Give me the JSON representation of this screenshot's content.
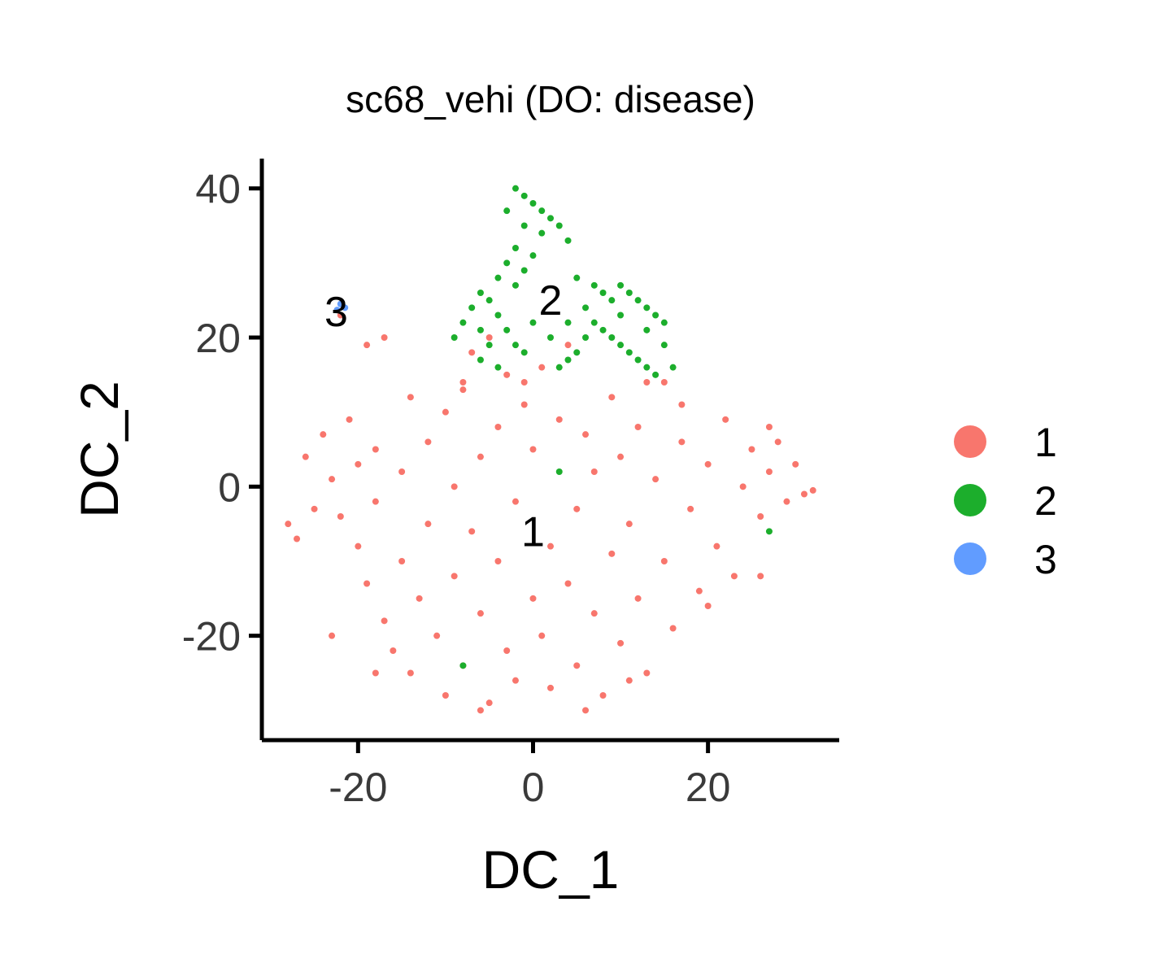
{
  "chart_data": {
    "type": "scatter",
    "title": "sc68_vehi (DO: disease)",
    "xlabel": "DC_1",
    "ylabel": "DC_2",
    "xlim": [
      -31,
      35
    ],
    "ylim": [
      -34,
      44
    ],
    "x_ticks": [
      -20,
      0,
      20
    ],
    "y_ticks": [
      -20,
      0,
      20,
      40
    ],
    "x_tick_labels": [
      "-20",
      "0",
      "20"
    ],
    "y_tick_labels": [
      "-20",
      "0",
      "20",
      "40"
    ],
    "grid": false,
    "legend_position": "right",
    "series": [
      {
        "name": "1",
        "color": "#F8766D",
        "label_at": [
          0,
          -6
        ],
        "points": [
          [
            -28,
            -5
          ],
          [
            -26,
            4
          ],
          [
            -25,
            -3
          ],
          [
            -24,
            7
          ],
          [
            -23,
            1
          ],
          [
            -22,
            -4
          ],
          [
            -21,
            9
          ],
          [
            -20,
            3
          ],
          [
            -20,
            -8
          ],
          [
            -19,
            -13
          ],
          [
            -18,
            5
          ],
          [
            -18,
            -2
          ],
          [
            -17,
            -18
          ],
          [
            -16,
            -22
          ],
          [
            -15,
            2
          ],
          [
            -15,
            -10
          ],
          [
            -14,
            -25
          ],
          [
            -13,
            -15
          ],
          [
            -12,
            -5
          ],
          [
            -12,
            6
          ],
          [
            -11,
            -20
          ],
          [
            -10,
            -28
          ],
          [
            -10,
            10
          ],
          [
            -9,
            -12
          ],
          [
            -9,
            0
          ],
          [
            -8,
            -24
          ],
          [
            -8,
            14
          ],
          [
            -7,
            -6
          ],
          [
            -7,
            18
          ],
          [
            -6,
            -17
          ],
          [
            -6,
            4
          ],
          [
            -5,
            -29
          ],
          [
            -5,
            20
          ],
          [
            -4,
            -10
          ],
          [
            -4,
            8
          ],
          [
            -3,
            -22
          ],
          [
            -3,
            15
          ],
          [
            -2,
            -2
          ],
          [
            -2,
            -26
          ],
          [
            -1,
            11
          ],
          [
            0,
            -15
          ],
          [
            0,
            5
          ],
          [
            1,
            -20
          ],
          [
            1,
            16
          ],
          [
            2,
            -8
          ],
          [
            2,
            -27
          ],
          [
            3,
            9
          ],
          [
            4,
            -13
          ],
          [
            4,
            19
          ],
          [
            5,
            -3
          ],
          [
            5,
            -24
          ],
          [
            6,
            7
          ],
          [
            7,
            -17
          ],
          [
            7,
            2
          ],
          [
            8,
            -28
          ],
          [
            9,
            -9
          ],
          [
            9,
            12
          ],
          [
            10,
            -21
          ],
          [
            10,
            4
          ],
          [
            11,
            -5
          ],
          [
            12,
            -15
          ],
          [
            12,
            8
          ],
          [
            13,
            -25
          ],
          [
            14,
            1
          ],
          [
            15,
            -10
          ],
          [
            15,
            14
          ],
          [
            16,
            -19
          ],
          [
            17,
            6
          ],
          [
            18,
            -3
          ],
          [
            19,
            -14
          ],
          [
            20,
            3
          ],
          [
            21,
            -8
          ],
          [
            22,
            9
          ],
          [
            23,
            -12
          ],
          [
            24,
            0
          ],
          [
            25,
            5
          ],
          [
            26,
            -4
          ],
          [
            27,
            2
          ],
          [
            28,
            6
          ],
          [
            29,
            -2
          ],
          [
            30,
            3
          ],
          [
            31,
            -1
          ],
          [
            32,
            -0.5
          ],
          [
            27,
            8
          ],
          [
            -22,
            23
          ],
          [
            -19,
            19
          ],
          [
            -17,
            20
          ],
          [
            -14,
            12
          ],
          [
            -8,
            13
          ],
          [
            -1,
            14
          ],
          [
            13,
            14
          ],
          [
            17,
            11
          ],
          [
            -23,
            -20
          ],
          [
            -18,
            -25
          ],
          [
            -6,
            -30
          ],
          [
            6,
            -30
          ],
          [
            11,
            -26
          ],
          [
            20,
            -16
          ],
          [
            26,
            -12
          ],
          [
            -27,
            -7
          ]
        ]
      },
      {
        "name": "2",
        "color": "#1CAE2C",
        "label_at": [
          2,
          25
        ],
        "points": [
          [
            -2,
            40
          ],
          [
            -1,
            39
          ],
          [
            0,
            38
          ],
          [
            1,
            37
          ],
          [
            -3,
            37
          ],
          [
            2,
            36
          ],
          [
            -1,
            35
          ],
          [
            1,
            34
          ],
          [
            3,
            35
          ],
          [
            4,
            33
          ],
          [
            -2,
            32
          ],
          [
            0,
            31
          ],
          [
            -3,
            30
          ],
          [
            -1,
            29
          ],
          [
            -4,
            28
          ],
          [
            -2,
            27
          ],
          [
            -6,
            26
          ],
          [
            -5,
            25
          ],
          [
            -7,
            24
          ],
          [
            -4,
            23
          ],
          [
            -8,
            22
          ],
          [
            -6,
            21
          ],
          [
            -3,
            21
          ],
          [
            -9,
            20
          ],
          [
            -5,
            19
          ],
          [
            -2,
            19
          ],
          [
            0,
            22
          ],
          [
            -1,
            18
          ],
          [
            -4,
            16
          ],
          [
            -6,
            17
          ],
          [
            5,
            28
          ],
          [
            7,
            27
          ],
          [
            8,
            26
          ],
          [
            9,
            25
          ],
          [
            10,
            27
          ],
          [
            11,
            26
          ],
          [
            12,
            25
          ],
          [
            13,
            24
          ],
          [
            14,
            23
          ],
          [
            15,
            22
          ],
          [
            6,
            24
          ],
          [
            7,
            22
          ],
          [
            8,
            21
          ],
          [
            9,
            20
          ],
          [
            10,
            19
          ],
          [
            11,
            18
          ],
          [
            12,
            17
          ],
          [
            13,
            16
          ],
          [
            14,
            15
          ],
          [
            6,
            20
          ],
          [
            5,
            18
          ],
          [
            4,
            17
          ],
          [
            3,
            16
          ],
          [
            16,
            16
          ],
          [
            15,
            19
          ],
          [
            13,
            21
          ],
          [
            10,
            23
          ],
          [
            4,
            22
          ],
          [
            2,
            20
          ],
          [
            -8,
            -24
          ],
          [
            27,
            -6
          ],
          [
            3,
            2
          ]
        ]
      },
      {
        "name": "3",
        "color": "#619CFF",
        "label_at": [
          -22.5,
          23.5
        ],
        "points": [
          [
            -22,
            24.5
          ],
          [
            -21.5,
            24
          ],
          [
            -22.4,
            23.7
          ]
        ]
      }
    ]
  }
}
